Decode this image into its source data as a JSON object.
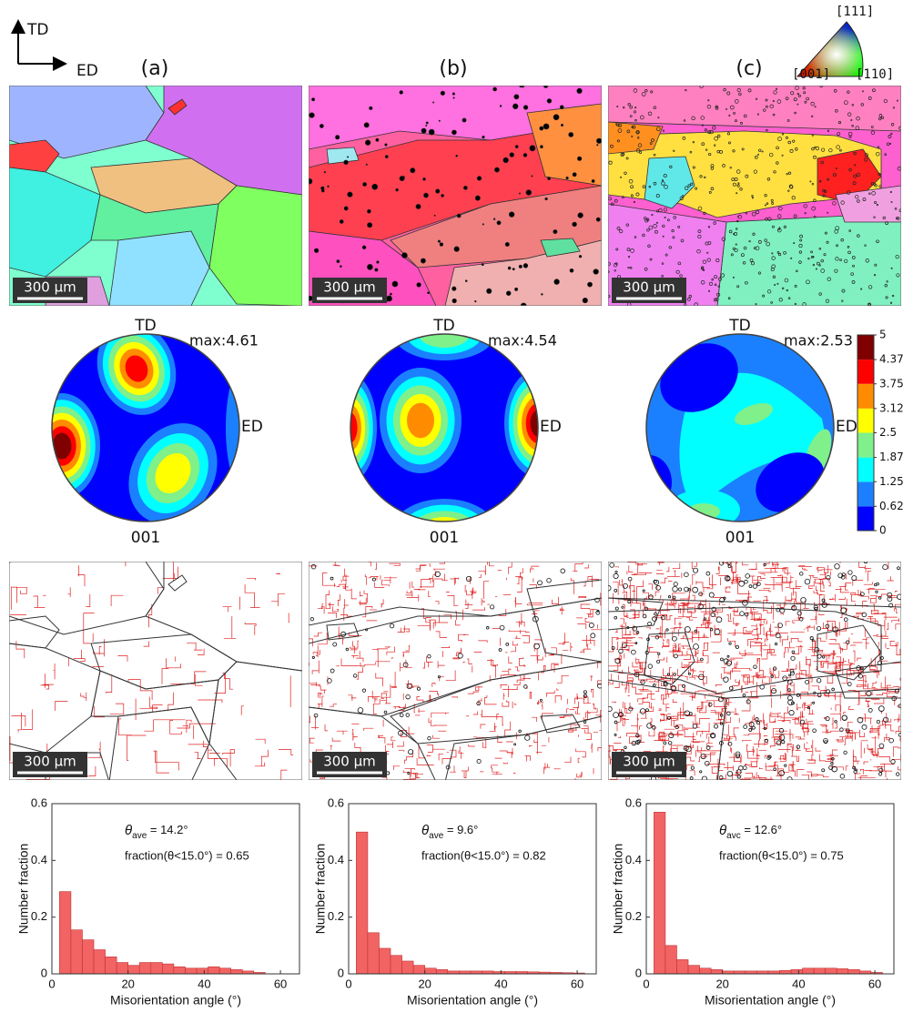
{
  "figure": {
    "axes_labels": {
      "td": "TD",
      "ed": "ED"
    },
    "ipf_labels": [
      "[111]",
      "[001]",
      "[110]"
    ],
    "panels": [
      {
        "label": "(a)",
        "map_scale_bar": "300 μm",
        "boundary_scale_bar": "300 μm",
        "pole_figure": {
          "top": "TD",
          "right": "ED",
          "bottom": "001",
          "max": "max:4.61"
        }
      },
      {
        "label": "(b)",
        "map_scale_bar": "300 μm",
        "boundary_scale_bar": "300 μm",
        "pole_figure": {
          "top": "TD",
          "right": "ED",
          "bottom": "001",
          "max": "max:4.54"
        }
      },
      {
        "label": "(c)",
        "map_scale_bar": "300 μm",
        "boundary_scale_bar": "300 μm",
        "pole_figure": {
          "top": "TD",
          "right": "ED",
          "bottom": "001",
          "max": "max:2.53"
        }
      }
    ],
    "colorbar": {
      "ticks": [
        0,
        0.62,
        1.25,
        1.87,
        2.5,
        3.12,
        3.75,
        4.37,
        5
      ],
      "colors": [
        "#0000ff",
        "#1a80ff",
        "#00ffff",
        "#7ff08a",
        "#ffff00",
        "#ff8c00",
        "#ff0000",
        "#800000"
      ]
    }
  },
  "chart_data": [
    {
      "type": "histogram",
      "x_label": "Misorientation angle (°)",
      "y_label": "Number fraction",
      "color": "#f26464",
      "bins": [
        2,
        5,
        8,
        11,
        14,
        17,
        20,
        23,
        26,
        29,
        32,
        35,
        38,
        41,
        44,
        47,
        50,
        53,
        56,
        59,
        62
      ],
      "values": [
        0.29,
        0.155,
        0.12,
        0.085,
        0.06,
        0.04,
        0.03,
        0.04,
        0.04,
        0.035,
        0.025,
        0.02,
        0.02,
        0.025,
        0.02,
        0.015,
        0.01,
        0.005,
        0,
        0
      ],
      "xlim": [
        0,
        65
      ],
      "ylim": [
        0,
        0.6
      ],
      "xticks": [
        0,
        20,
        40,
        60
      ],
      "yticks": [
        0,
        0.2,
        0.4,
        0.6
      ],
      "theta_symbol": "θ",
      "theta_sub": "ave",
      "theta_text": " = 14.2°",
      "fraction_text": "fraction(θ<15.0°) =  0.65"
    },
    {
      "type": "histogram",
      "x_label": "Misorientation angle (°)",
      "y_label": "Number fraction",
      "color": "#f26464",
      "bins": [
        2,
        5,
        8,
        11,
        14,
        17,
        20,
        23,
        26,
        29,
        32,
        35,
        38,
        41,
        44,
        47,
        50,
        53,
        56,
        59,
        62
      ],
      "values": [
        0.5,
        0.145,
        0.09,
        0.065,
        0.045,
        0.03,
        0.02,
        0.015,
        0.01,
        0.01,
        0.01,
        0.01,
        0.008,
        0.008,
        0.008,
        0.007,
        0.006,
        0.005,
        0.004,
        0.003
      ],
      "xlim": [
        0,
        65
      ],
      "ylim": [
        0,
        0.6
      ],
      "xticks": [
        0,
        20,
        40,
        60
      ],
      "yticks": [
        0,
        0.2,
        0.4,
        0.6
      ],
      "theta_symbol": "θ",
      "theta_sub": "ave",
      "theta_text": " = 9.6°",
      "fraction_text": "fraction(θ<15.0°) =  0.82"
    },
    {
      "type": "histogram",
      "x_label": "Misorientation angle (°)",
      "y_label": "Number fraction",
      "color": "#f26464",
      "bins": [
        2,
        5,
        8,
        11,
        14,
        17,
        20,
        23,
        26,
        29,
        32,
        35,
        38,
        41,
        44,
        47,
        50,
        53,
        56,
        59,
        62
      ],
      "values": [
        0.57,
        0.1,
        0.05,
        0.03,
        0.02,
        0.015,
        0.01,
        0.01,
        0.01,
        0.01,
        0.01,
        0.012,
        0.015,
        0.02,
        0.02,
        0.02,
        0.018,
        0.015,
        0.01,
        0.005
      ],
      "xlim": [
        0,
        65
      ],
      "ylim": [
        0,
        0.6
      ],
      "xticks": [
        0,
        20,
        40,
        60
      ],
      "yticks": [
        0,
        0.2,
        0.4,
        0.6
      ],
      "theta_symbol": "θ",
      "theta_sub": "avc",
      "theta_text": " = 12.6°",
      "fraction_text": "fraction(θ<15.0°) =  0.75"
    }
  ]
}
